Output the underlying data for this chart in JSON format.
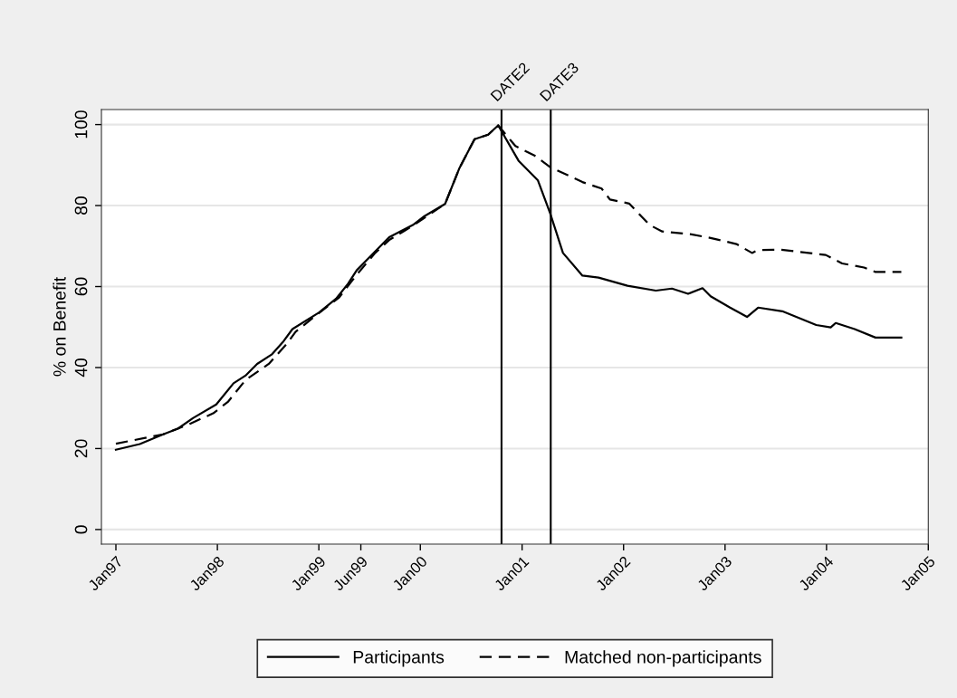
{
  "chart_data": {
    "type": "line",
    "ylabel": "% on Benefit",
    "legend": "bottom",
    "grid": "y",
    "marker": "none",
    "xlim": [
      "1996-11-10",
      "2005-01-01"
    ],
    "xticks": [
      {
        "value": "1997-01-01",
        "label": "Jan97"
      },
      {
        "value": "1998-01-01",
        "label": "Jan98"
      },
      {
        "value": "1999-01-01",
        "label": "Jan99"
      },
      {
        "value": "1999-06-01",
        "label": "Jun99"
      },
      {
        "value": "2000-01-01",
        "label": "Jan00"
      },
      {
        "value": "2001-01-01",
        "label": "Jan01"
      },
      {
        "value": "2002-01-01",
        "label": "Jan02"
      },
      {
        "value": "2003-01-01",
        "label": "Jan03"
      },
      {
        "value": "2004-01-01",
        "label": "Jan04"
      },
      {
        "value": "2005-01-01",
        "label": "Jan05"
      }
    ],
    "ylim": [
      -3.6,
      103.7
    ],
    "yticks": [
      0,
      20,
      40,
      60,
      80,
      100
    ],
    "ref_lines": [
      {
        "axis": "x",
        "value": "2000-10-19",
        "label": "DATE2",
        "color": "#000000"
      },
      {
        "axis": "x",
        "value": "2001-04-14",
        "label": "DATE3",
        "color": "#000000"
      }
    ],
    "series": [
      {
        "name": "Participants",
        "color": "#000000",
        "line_style": "solid",
        "x": [
          "1997-01-01",
          "1997-03-28",
          "1997-06-20",
          "1997-08-12",
          "1997-10-05",
          "1997-12-28",
          "1998-02-28",
          "1998-04-12",
          "1998-05-24",
          "1998-07-15",
          "1998-08-27",
          "1998-09-28",
          "1999-01-02",
          "1999-03-04",
          "1999-04-16",
          "1999-05-17",
          "1999-07-09",
          "1999-09-11",
          "1999-12-05",
          "2000-01-16",
          "2000-03-30",
          "2000-05-21",
          "2000-07-14",
          "2000-09-01",
          "2000-10-07",
          "2000-12-19",
          "2001-02-27",
          "2001-04-12",
          "2001-05-28",
          "2001-08-06",
          "2001-10-03",
          "2002-01-15",
          "2002-04-27",
          "2002-06-24",
          "2002-08-21",
          "2002-10-12",
          "2002-11-10",
          "2003-01-19",
          "2003-03-21",
          "2003-04-30",
          "2003-07-26",
          "2003-11-25",
          "2004-01-16",
          "2004-02-03",
          "2004-04-11",
          "2004-06-25",
          "2004-09-26"
        ],
        "values": [
          19.7,
          21.1,
          23.5,
          24.9,
          27.5,
          30.9,
          36.1,
          38.0,
          40.9,
          43.2,
          46.5,
          49.5,
          53.6,
          57.0,
          60.7,
          64.0,
          67.7,
          72.2,
          75.2,
          77.4,
          80.4,
          89.3,
          96.4,
          97.5,
          99.8,
          91.1,
          86.2,
          78.1,
          68.3,
          62.7,
          62.2,
          60.2,
          59.0,
          59.5,
          58.2,
          59.6,
          57.6,
          54.8,
          52.5,
          54.8,
          53.9,
          50.5,
          49.9,
          51.0,
          49.5,
          47.4,
          47.4
        ]
      },
      {
        "name": "Matched non-participants",
        "color": "#000000",
        "line_style": "dashed",
        "x": [
          "1997-01-01",
          "1997-06-20",
          "1997-09-24",
          "1997-12-17",
          "1998-02-09",
          "1998-04-12",
          "1998-07-05",
          "1998-09-07",
          "1998-10-09",
          "1998-12-22",
          "1999-03-15",
          "1999-05-17",
          "1999-07-20",
          "1999-09-11",
          "1999-12-05",
          "2000-01-16",
          "2000-03-30",
          "2000-05-21",
          "2000-07-14",
          "2000-09-01",
          "2000-10-07",
          "2000-12-08",
          "2001-02-16",
          "2001-04-12",
          "2001-08-06",
          "2001-10-14",
          "2001-11-13",
          "2002-01-21",
          "2002-04-05",
          "2002-05-20",
          "2002-09-02",
          "2002-11-10",
          "2003-02-11",
          "2003-04-08",
          "2003-04-30",
          "2003-07-20",
          "2003-12-29",
          "2004-02-26",
          "2004-05-15",
          "2004-06-25",
          "2004-09-26"
        ],
        "values": [
          21.2,
          23.5,
          26.1,
          28.7,
          31.6,
          36.9,
          40.9,
          45.8,
          48.8,
          52.9,
          57.3,
          62.9,
          68.1,
          71.5,
          75.0,
          77.0,
          80.4,
          89.3,
          96.4,
          97.5,
          99.8,
          94.7,
          92.3,
          89.5,
          85.8,
          84.2,
          81.5,
          80.5,
          75.2,
          73.6,
          72.9,
          72.0,
          70.5,
          68.3,
          69.0,
          69.1,
          67.8,
          65.7,
          64.7,
          63.6,
          63.6
        ]
      }
    ]
  }
}
